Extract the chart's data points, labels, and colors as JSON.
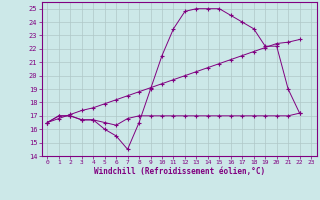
{
  "xlabel": "Windchill (Refroidissement éolien,°C)",
  "bg_color": "#cce8e8",
  "line_color": "#800080",
  "grid_color": "#b0c8c8",
  "xlim": [
    -0.5,
    23.5
  ],
  "ylim": [
    14,
    25.5
  ],
  "xticks": [
    0,
    1,
    2,
    3,
    4,
    5,
    6,
    7,
    8,
    9,
    10,
    11,
    12,
    13,
    14,
    15,
    16,
    17,
    18,
    19,
    20,
    21,
    22,
    23
  ],
  "yticks": [
    14,
    15,
    16,
    17,
    18,
    19,
    20,
    21,
    22,
    23,
    24,
    25
  ],
  "curve1_x": [
    0,
    1,
    2,
    3,
    4,
    5,
    6,
    7,
    8,
    9,
    10,
    11,
    12,
    13,
    14,
    15,
    16,
    17,
    18,
    19,
    20,
    21,
    22
  ],
  "curve1_y": [
    16.5,
    17.0,
    17.0,
    16.7,
    16.7,
    16.0,
    15.5,
    14.5,
    16.5,
    19.0,
    21.5,
    23.5,
    24.8,
    25.0,
    25.0,
    25.0,
    24.5,
    24.0,
    23.5,
    22.2,
    22.2,
    19.0,
    17.2
  ],
  "curve2_x": [
    0,
    1,
    2,
    3,
    4,
    5,
    6,
    7,
    8,
    9,
    10,
    11,
    12,
    13,
    14,
    15,
    16,
    17,
    18,
    19,
    20,
    21,
    22
  ],
  "curve2_y": [
    16.5,
    16.8,
    17.1,
    17.4,
    17.6,
    17.9,
    18.2,
    18.5,
    18.8,
    19.1,
    19.4,
    19.7,
    20.0,
    20.3,
    20.6,
    20.9,
    21.2,
    21.5,
    21.8,
    22.1,
    22.4,
    22.5,
    22.7
  ],
  "curve3_x": [
    0,
    1,
    2,
    3,
    4,
    5,
    6,
    7,
    8,
    9,
    10,
    11,
    12,
    13,
    14,
    15,
    16,
    17,
    18,
    19,
    20,
    21,
    22
  ],
  "curve3_y": [
    16.5,
    17.0,
    17.0,
    16.7,
    16.7,
    16.5,
    16.3,
    16.8,
    17.0,
    17.0,
    17.0,
    17.0,
    17.0,
    17.0,
    17.0,
    17.0,
    17.0,
    17.0,
    17.0,
    17.0,
    17.0,
    17.0,
    17.2
  ]
}
